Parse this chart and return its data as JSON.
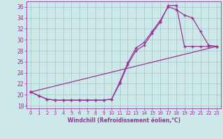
{
  "xlabel": "Windchill (Refroidissement éolien,°C)",
  "bg_color": "#cce8e8",
  "grid_color": "#aacccc",
  "line_color": "#993399",
  "xlim": [
    -0.5,
    23.5
  ],
  "ylim": [
    17.5,
    37.0
  ],
  "yticks": [
    18,
    20,
    22,
    24,
    26,
    28,
    30,
    32,
    34,
    36
  ],
  "xticks": [
    0,
    1,
    2,
    3,
    4,
    5,
    6,
    7,
    8,
    9,
    10,
    11,
    12,
    13,
    14,
    15,
    16,
    17,
    18,
    19,
    20,
    21,
    22,
    23
  ],
  "series1_x": [
    0,
    1,
    2,
    3,
    4,
    5,
    6,
    7,
    8,
    9,
    10,
    11,
    12,
    13,
    14,
    15,
    16,
    17,
    18,
    19,
    20,
    21,
    22,
    23
  ],
  "series1_y": [
    20.5,
    19.8,
    19.2,
    19.0,
    19.0,
    19.0,
    19.0,
    19.0,
    19.0,
    19.0,
    19.2,
    22.3,
    25.8,
    28.5,
    29.5,
    31.5,
    33.5,
    36.0,
    35.5,
    34.5,
    34.0,
    31.5,
    29.0,
    28.8
  ],
  "series2_x": [
    0,
    1,
    2,
    3,
    4,
    5,
    6,
    7,
    8,
    9,
    10,
    11,
    12,
    13,
    14,
    15,
    16,
    17,
    18,
    19,
    20,
    21,
    22,
    23
  ],
  "series2_y": [
    20.5,
    19.8,
    19.2,
    19.0,
    19.0,
    19.0,
    19.0,
    19.0,
    19.0,
    19.0,
    19.2,
    22.0,
    25.5,
    28.0,
    29.0,
    31.2,
    33.2,
    36.2,
    36.3,
    28.8,
    28.8,
    28.8,
    28.8,
    28.8
  ],
  "series3_x": [
    0,
    23
  ],
  "series3_y": [
    20.5,
    28.8
  ]
}
